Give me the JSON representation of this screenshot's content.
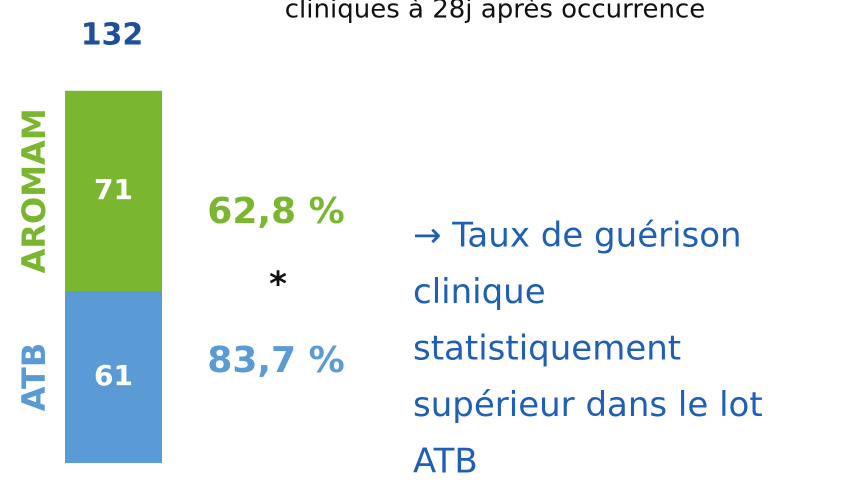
{
  "chart_data": {
    "type": "stacked_bar",
    "header_text": "cliniques à 28j après occurrence",
    "total": 132,
    "series": [
      {
        "name": "ATB",
        "color": "#5b9bd5",
        "values": [
          61
        ]
      },
      {
        "name": "AROMAM",
        "color": "#7ab630",
        "values": [
          71
        ]
      }
    ],
    "rate_labels": [
      "83,7 %",
      "62,8 %"
    ],
    "significance": "*",
    "conclusion": [
      "→ Taux de guérison",
      "clinique",
      "statistiquement",
      "supérieur dans le lot",
      "ATB"
    ]
  }
}
